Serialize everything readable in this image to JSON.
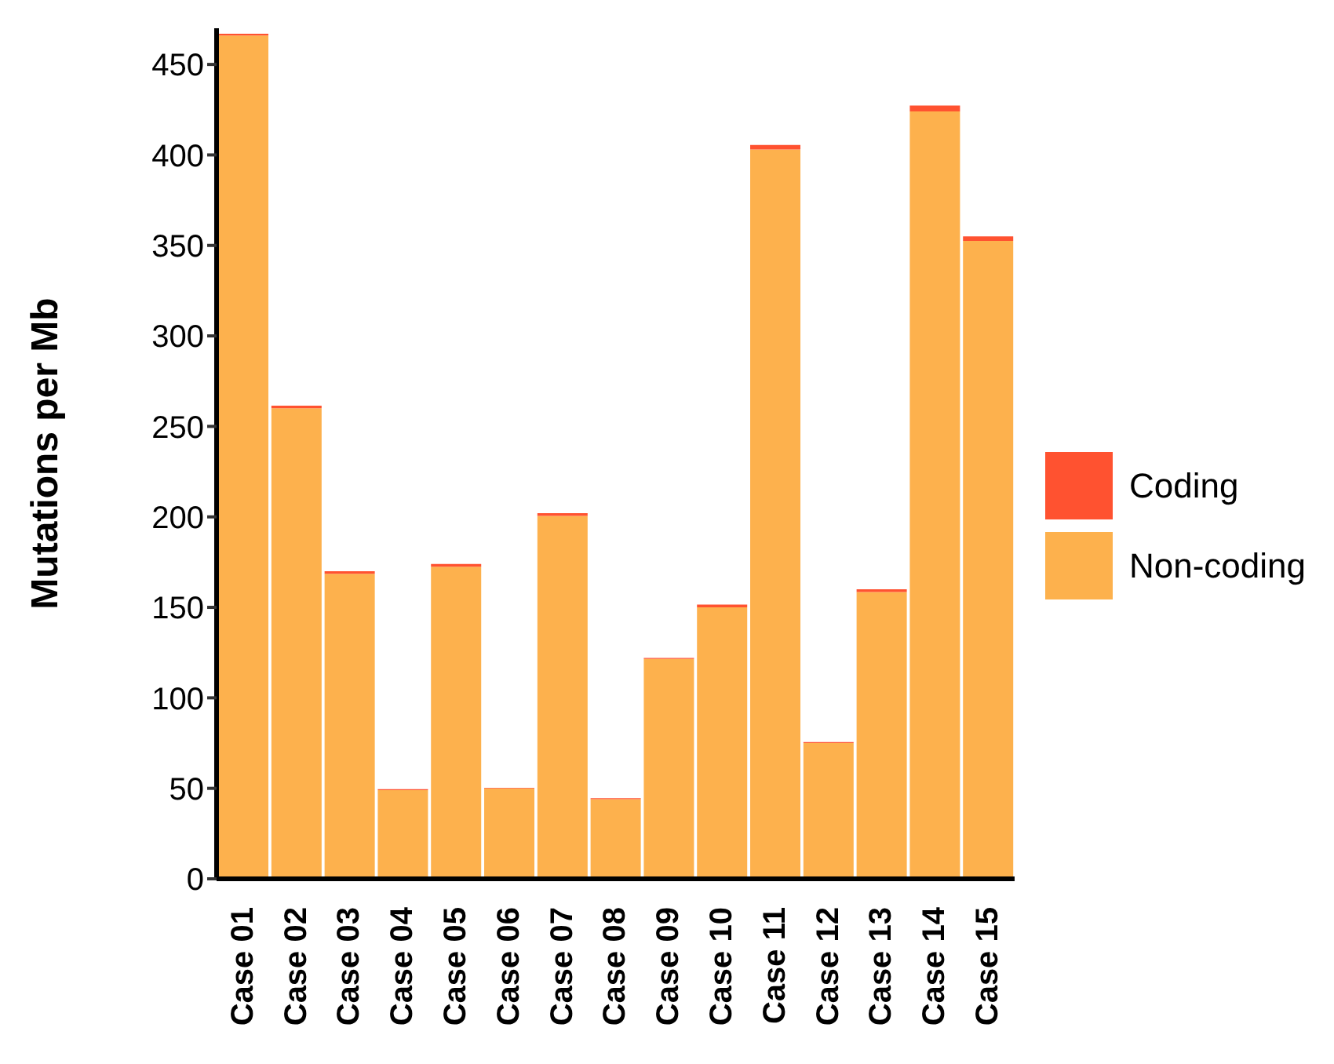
{
  "chart_data": {
    "type": "bar",
    "stacked": true,
    "ylabel": "Mutations per Mb",
    "categories": [
      "Case 01",
      "Case 02",
      "Case 03",
      "Case 04",
      "Case 05",
      "Case 06",
      "Case 07",
      "Case 08",
      "Case 09",
      "Case 10",
      "Case 11",
      "Case 12",
      "Case 13",
      "Case 14",
      "Case 15"
    ],
    "series": [
      {
        "name": "Non-coding",
        "color": "#fdb14d",
        "values": [
          466,
          260,
          168.5,
          49,
          172.5,
          50,
          200.5,
          44,
          121.5,
          150,
          403,
          75,
          158.5,
          424,
          352.5
        ]
      },
      {
        "name": "Coding",
        "color": "#ff5230",
        "values": [
          1,
          1.5,
          1.5,
          0.5,
          1.5,
          0.3,
          1.5,
          0.5,
          0.5,
          1.5,
          2.5,
          0.5,
          1.5,
          3.3,
          2.5
        ]
      }
    ],
    "ylim": [
      0,
      470
    ],
    "yticks": [
      0,
      50,
      100,
      150,
      200,
      250,
      300,
      350,
      400,
      450
    ],
    "grid": false,
    "legend": "right"
  }
}
